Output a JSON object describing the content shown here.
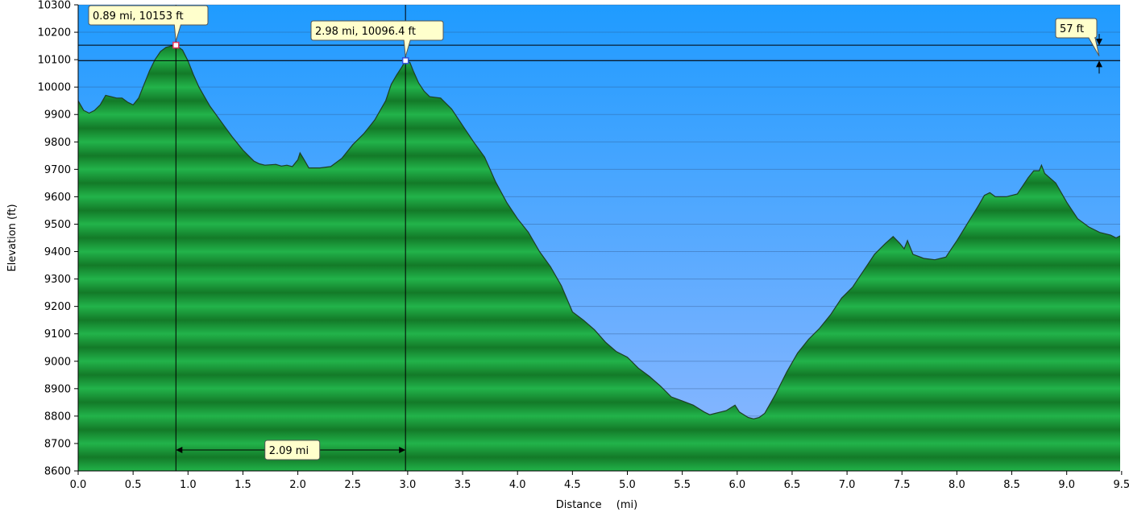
{
  "chart_data": {
    "type": "area",
    "title": "",
    "xlabel": "Distance",
    "xlabel_unit": "(mi)",
    "ylabel": "Elevation (ft)",
    "xlim": [
      0.0,
      9.5
    ],
    "ylim": [
      8600,
      10300
    ],
    "x_ticks": [
      "0.0",
      "0.5",
      "1.0",
      "1.5",
      "2.0",
      "2.5",
      "3.0",
      "3.5",
      "4.0",
      "4.5",
      "5.0",
      "5.5",
      "6.0",
      "6.5",
      "7.0",
      "7.5",
      "8.0",
      "8.5",
      "9.0",
      "9.5"
    ],
    "y_ticks": [
      "8600",
      "8700",
      "8800",
      "8900",
      "9000",
      "9100",
      "9200",
      "9300",
      "9400",
      "9500",
      "9600",
      "9700",
      "9800",
      "9900",
      "10000",
      "10100",
      "10200",
      "10300"
    ],
    "grid": true,
    "colors": {
      "sky_top": "#1f9bff",
      "sky_bottom": "#8fb8ff",
      "terrain_light": "#22b34a",
      "terrain_dark": "#137a28",
      "terrain_edge": "#1e3e24",
      "callout_fill": "#ffffcc"
    },
    "profile": [
      [
        0.0,
        9950
      ],
      [
        0.05,
        9915
      ],
      [
        0.1,
        9905
      ],
      [
        0.15,
        9915
      ],
      [
        0.2,
        9935
      ],
      [
        0.25,
        9970
      ],
      [
        0.3,
        9965
      ],
      [
        0.35,
        9960
      ],
      [
        0.4,
        9960
      ],
      [
        0.45,
        9945
      ],
      [
        0.5,
        9935
      ],
      [
        0.55,
        9960
      ],
      [
        0.6,
        10010
      ],
      [
        0.65,
        10060
      ],
      [
        0.7,
        10100
      ],
      [
        0.75,
        10130
      ],
      [
        0.8,
        10145
      ],
      [
        0.85,
        10150
      ],
      [
        0.89,
        10153
      ],
      [
        0.95,
        10135
      ],
      [
        1.0,
        10095
      ],
      [
        1.05,
        10045
      ],
      [
        1.1,
        10000
      ],
      [
        1.2,
        9930
      ],
      [
        1.3,
        9875
      ],
      [
        1.4,
        9820
      ],
      [
        1.45,
        9795
      ],
      [
        1.5,
        9770
      ],
      [
        1.55,
        9750
      ],
      [
        1.6,
        9730
      ],
      [
        1.65,
        9720
      ],
      [
        1.7,
        9715
      ],
      [
        1.8,
        9718
      ],
      [
        1.85,
        9712
      ],
      [
        1.9,
        9715
      ],
      [
        1.95,
        9710
      ],
      [
        2.0,
        9735
      ],
      [
        2.02,
        9760
      ],
      [
        2.05,
        9740
      ],
      [
        2.1,
        9705
      ],
      [
        2.2,
        9705
      ],
      [
        2.3,
        9710
      ],
      [
        2.4,
        9740
      ],
      [
        2.5,
        9790
      ],
      [
        2.6,
        9830
      ],
      [
        2.7,
        9880
      ],
      [
        2.8,
        9950
      ],
      [
        2.85,
        10010
      ],
      [
        2.9,
        10045
      ],
      [
        2.95,
        10075
      ],
      [
        2.98,
        10096.4
      ],
      [
        3.02,
        10090
      ],
      [
        3.05,
        10060
      ],
      [
        3.1,
        10015
      ],
      [
        3.15,
        9985
      ],
      [
        3.2,
        9965
      ],
      [
        3.3,
        9960
      ],
      [
        3.4,
        9920
      ],
      [
        3.5,
        9860
      ],
      [
        3.6,
        9800
      ],
      [
        3.7,
        9745
      ],
      [
        3.8,
        9655
      ],
      [
        3.9,
        9580
      ],
      [
        4.0,
        9520
      ],
      [
        4.1,
        9470
      ],
      [
        4.2,
        9400
      ],
      [
        4.3,
        9345
      ],
      [
        4.4,
        9275
      ],
      [
        4.5,
        9180
      ],
      [
        4.6,
        9150
      ],
      [
        4.7,
        9115
      ],
      [
        4.8,
        9070
      ],
      [
        4.9,
        9035
      ],
      [
        5.0,
        9015
      ],
      [
        5.1,
        8975
      ],
      [
        5.2,
        8945
      ],
      [
        5.3,
        8910
      ],
      [
        5.4,
        8870
      ],
      [
        5.5,
        8855
      ],
      [
        5.6,
        8840
      ],
      [
        5.7,
        8815
      ],
      [
        5.75,
        8805
      ],
      [
        5.8,
        8810
      ],
      [
        5.9,
        8820
      ],
      [
        5.98,
        8840
      ],
      [
        6.02,
        8815
      ],
      [
        6.1,
        8795
      ],
      [
        6.15,
        8790
      ],
      [
        6.2,
        8795
      ],
      [
        6.25,
        8810
      ],
      [
        6.35,
        8880
      ],
      [
        6.45,
        8960
      ],
      [
        6.55,
        9030
      ],
      [
        6.65,
        9080
      ],
      [
        6.75,
        9120
      ],
      [
        6.85,
        9170
      ],
      [
        6.95,
        9230
      ],
      [
        7.05,
        9270
      ],
      [
        7.15,
        9330
      ],
      [
        7.25,
        9390
      ],
      [
        7.35,
        9430
      ],
      [
        7.42,
        9455
      ],
      [
        7.48,
        9430
      ],
      [
        7.52,
        9410
      ],
      [
        7.55,
        9440
      ],
      [
        7.6,
        9390
      ],
      [
        7.7,
        9375
      ],
      [
        7.8,
        9370
      ],
      [
        7.9,
        9380
      ],
      [
        8.0,
        9440
      ],
      [
        8.1,
        9505
      ],
      [
        8.2,
        9570
      ],
      [
        8.25,
        9605
      ],
      [
        8.3,
        9615
      ],
      [
        8.35,
        9600
      ],
      [
        8.45,
        9600
      ],
      [
        8.55,
        9610
      ],
      [
        8.6,
        9640
      ],
      [
        8.65,
        9670
      ],
      [
        8.7,
        9695
      ],
      [
        8.75,
        9695
      ],
      [
        8.77,
        9715
      ],
      [
        8.8,
        9685
      ],
      [
        8.9,
        9650
      ],
      [
        9.0,
        9580
      ],
      [
        9.1,
        9520
      ],
      [
        9.2,
        9490
      ],
      [
        9.3,
        9470
      ],
      [
        9.4,
        9460
      ],
      [
        9.45,
        9450
      ],
      [
        9.5,
        9460
      ],
      [
        9.55,
        9490
      ]
    ],
    "markers": [
      {
        "x": 0.89,
        "y": 10153,
        "label": "0.89 mi, 10153 ft",
        "color": "#e0305a"
      },
      {
        "x": 2.98,
        "y": 10096.4,
        "label": "2.98 mi, 10096.4 ft",
        "color": "#3050e0"
      }
    ],
    "distance_annotation": {
      "from": 0.89,
      "to": 2.98,
      "label": "2.09 mi",
      "y": 8700
    },
    "elevation_annotation": {
      "from": 10096.4,
      "to": 10153,
      "label": "57 ft"
    }
  }
}
